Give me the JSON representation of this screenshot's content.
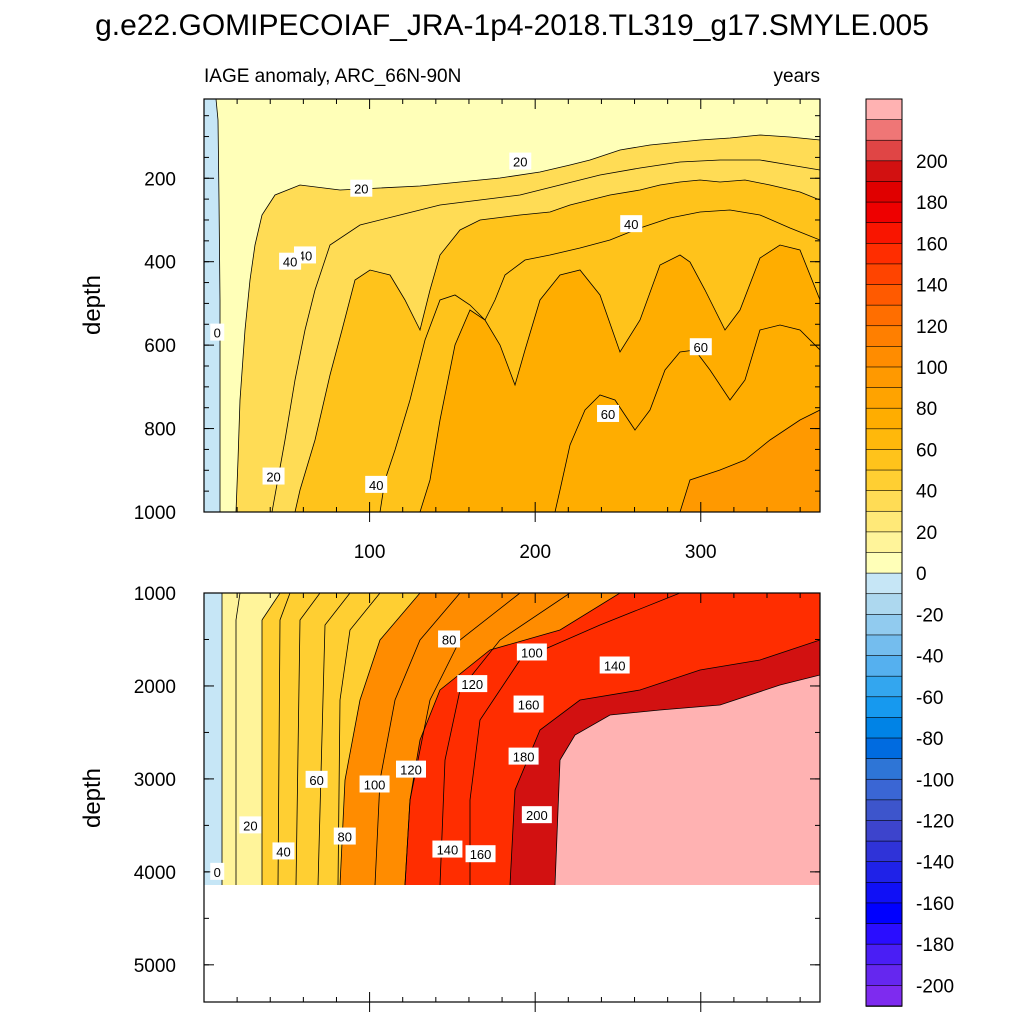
{
  "chart_data": {
    "type": "contour",
    "title": "g.e22.GOMIPECOIAF_JRA-1p4-2018.TL319_g17.SMYLE.005",
    "variable_label": "IAGE anomaly, ARC_66N-90N",
    "units_label": "years",
    "colorbar": {
      "min": -210,
      "max": 210,
      "interval": 10,
      "labeled_ticks": [
        "200",
        "180",
        "160",
        "140",
        "120",
        "100",
        "80",
        "60",
        "40",
        "20",
        "0",
        "-20",
        "-40",
        "-60",
        "-80",
        "-100",
        "-120",
        "-140",
        "-160",
        "-180",
        "-200"
      ],
      "positive_colors": [
        "#ffffb8",
        "#fff49a",
        "#ffe978",
        "#ffdc55",
        "#ffcf32",
        "#ffc31b",
        "#ffb80b",
        "#ffad00",
        "#ffa300",
        "#ff9900",
        "#ff8c00",
        "#ff7f00",
        "#ff6e00",
        "#ff5a00",
        "#ff4400",
        "#ff2d00",
        "#f91500",
        "#ee0000",
        "#e00000",
        "#d21111",
        "#e04545",
        "#ef7676",
        "#ffb2b2"
      ],
      "negative_colors": [
        "#c6e6f6",
        "#add8ef",
        "#91cbef",
        "#74bdee",
        "#55b0ef",
        "#33a6ef",
        "#1699ef",
        "#0083e6",
        "#006be0",
        "#2e75d6",
        "#3a66d4",
        "#3d55cc",
        "#3d44cc",
        "#2f33d8",
        "#1f22e8",
        "#1010f6",
        "#0000ff",
        "#2a0dff",
        "#4a1ef5",
        "#6527ef",
        "#7e2bef"
      ]
    },
    "panels": [
      {
        "name": "upper",
        "ylabel": "depth",
        "y_range": [
          1000,
          10
        ],
        "x_range": [
          0,
          372
        ],
        "y_tick_labels": [
          "200",
          "400",
          "600",
          "800",
          "1000"
        ],
        "x_tick_labels": [
          "100",
          "200",
          "300"
        ],
        "contour_labels": [
          {
            "text": "0",
            "x": 8,
            "y": 570
          },
          {
            "text": "20",
            "x": 95,
            "y": 225
          },
          {
            "text": "20",
            "x": 191,
            "y": 160
          },
          {
            "text": "20",
            "x": 42,
            "y": 915
          },
          {
            "text": "40",
            "x": 61,
            "y": 385
          },
          {
            "text": "40",
            "x": 52,
            "y": 400
          },
          {
            "text": "40",
            "x": 258,
            "y": 310
          },
          {
            "text": "40",
            "x": 104,
            "y": 935
          },
          {
            "text": "60",
            "x": 300,
            "y": 605
          },
          {
            "text": "60",
            "x": 244,
            "y": 765
          }
        ]
      },
      {
        "name": "lower",
        "ylabel": "depth",
        "y_range": [
          5400,
          1000
        ],
        "x_range": [
          0,
          372
        ],
        "y_tick_labels": [
          "1000",
          "2000",
          "3000",
          "4000",
          "5000"
        ],
        "contour_labels": [
          {
            "text": "0",
            "x": 8,
            "y": 4000
          },
          {
            "text": "20",
            "x": 28,
            "y": 3500
          },
          {
            "text": "40",
            "x": 48,
            "y": 3780
          },
          {
            "text": "60",
            "x": 68,
            "y": 3010
          },
          {
            "text": "80",
            "x": 85,
            "y": 3620
          },
          {
            "text": "100",
            "x": 103,
            "y": 3060
          },
          {
            "text": "120",
            "x": 125,
            "y": 2900
          },
          {
            "text": "80",
            "x": 148,
            "y": 1500
          },
          {
            "text": "120",
            "x": 162,
            "y": 1980
          },
          {
            "text": "140",
            "x": 147,
            "y": 3760
          },
          {
            "text": "160",
            "x": 167,
            "y": 3810
          },
          {
            "text": "100",
            "x": 198,
            "y": 1640
          },
          {
            "text": "160",
            "x": 196,
            "y": 2200
          },
          {
            "text": "180",
            "x": 193,
            "y": 2760
          },
          {
            "text": "140",
            "x": 248,
            "y": 1780
          },
          {
            "text": "200",
            "x": 201,
            "y": 3390
          }
        ]
      }
    ]
  }
}
